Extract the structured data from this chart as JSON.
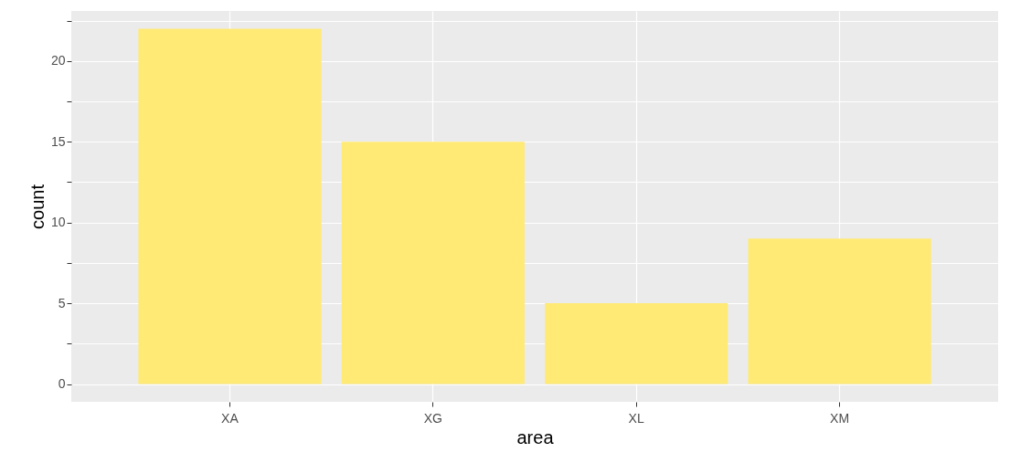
{
  "chart_data": {
    "type": "bar",
    "xlabel": "area",
    "ylabel": "count",
    "categories": [
      "XA",
      "XG",
      "XL",
      "XM"
    ],
    "values": [
      22,
      15,
      5,
      9
    ],
    "color": "#ffea75",
    "ylim": [
      -1.1,
      23.1
    ],
    "yticks": [
      0,
      {
        "value": 2.5,
        "label": null
      },
      5,
      {
        "value": 7.5,
        "label": null
      },
      10,
      {
        "value": 12.5,
        "label": null
      },
      15,
      {
        "value": 17.5,
        "label": null
      },
      20,
      {
        "value": 22.5,
        "label": null
      }
    ],
    "grid": true
  }
}
